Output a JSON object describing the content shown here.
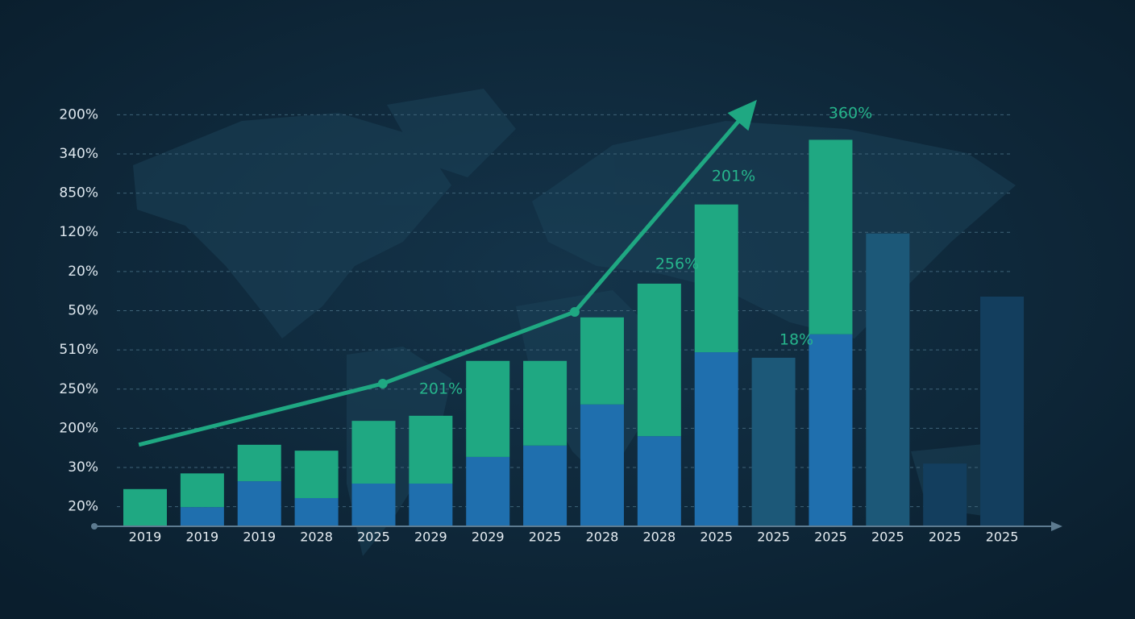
{
  "chart_data": {
    "type": "bar",
    "stacked": true,
    "categories": [
      "2019",
      "2019",
      "2019",
      "2028",
      "2025",
      "2029",
      "2029",
      "2025",
      "2028",
      "2028",
      "2025",
      "2025",
      "2025",
      "2025",
      "2025",
      "2025"
    ],
    "series": [
      {
        "color": "#1f6fae",
        "values": [
          0,
          0.49,
          1.15,
          0.72,
          1.09,
          1.09,
          1.77,
          2.06,
          3.11,
          2.3,
          4.44,
          null,
          4.9,
          null,
          null,
          null
        ]
      },
      {
        "color": "#1fa882",
        "values": [
          0.95,
          0.86,
          0.93,
          1.21,
          1.6,
          1.73,
          2.45,
          2.16,
          2.22,
          3.89,
          3.77,
          null,
          4.96,
          null,
          null,
          null
        ]
      },
      {
        "color": "#1c5878",
        "values": [
          null,
          null,
          null,
          null,
          null,
          null,
          null,
          null,
          null,
          null,
          null,
          4.3,
          null,
          7.47,
          null,
          null
        ]
      },
      {
        "color": "#133e5e",
        "values": [
          null,
          null,
          null,
          null,
          null,
          null,
          null,
          null,
          null,
          null,
          null,
          null,
          null,
          null,
          1.6,
          5.86
        ]
      }
    ],
    "line": {
      "color": "#1fa882",
      "x": [
        -0.11,
        4.16,
        7.52,
        10.58
      ],
      "values": [
        2.08,
        3.64,
        5.47,
        10.66
      ]
    },
    "annotations": [
      "201%",
      "256%",
      "201%",
      "18%",
      "360%"
    ],
    "ylim": [
      0,
      11
    ],
    "yticks": [
      {
        "value": 0.5,
        "label": "20%"
      },
      {
        "value": 1.5,
        "label": "30%"
      },
      {
        "value": 2.5,
        "label": "200%"
      },
      {
        "value": 3.5,
        "label": "250%"
      },
      {
        "value": 4.5,
        "label": "510%"
      },
      {
        "value": 5.5,
        "label": "50%"
      },
      {
        "value": 6.5,
        "label": "20%"
      },
      {
        "value": 7.5,
        "label": "120%"
      },
      {
        "value": 8.5,
        "label": "850%"
      },
      {
        "value": 9.5,
        "label": "340%"
      },
      {
        "value": 10.5,
        "label": "200%"
      }
    ],
    "grid": true
  }
}
